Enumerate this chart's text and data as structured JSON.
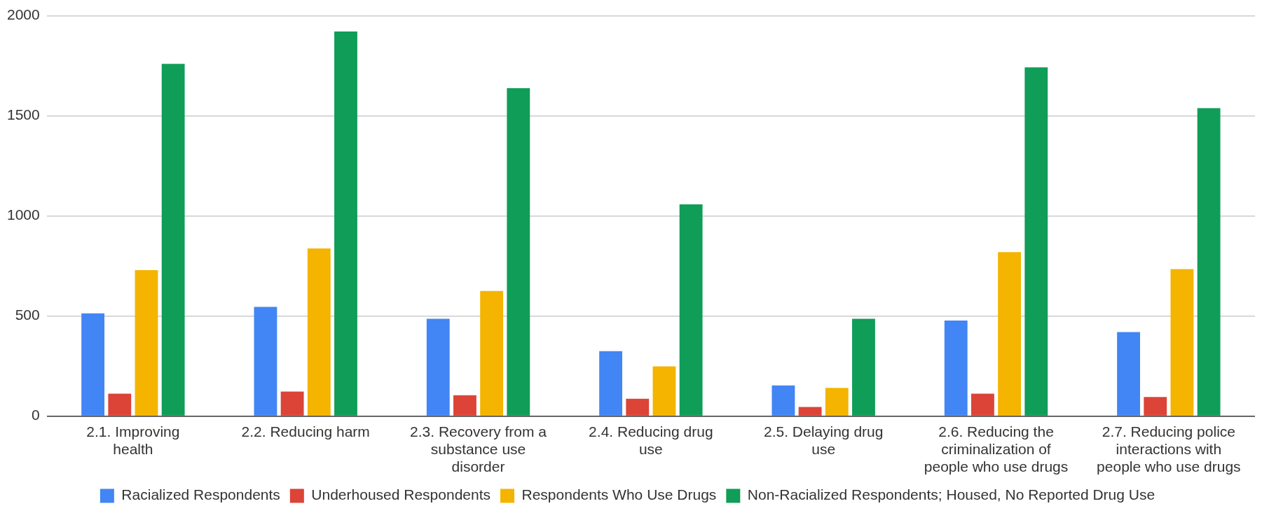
{
  "chart_data": {
    "type": "bar",
    "categories": [
      "2.1. Improving health",
      "2.2. Reducing harm",
      "2.3. Recovery from a substance use disorder",
      "2.4. Reducing drug use",
      "2.5. Delaying drug use",
      "2.6. Reducing the criminalization of people who use drugs",
      "2.7. Reducing police interactions with people who use drugs"
    ],
    "series": [
      {
        "name": "Racialized Respondents",
        "color": "#4285f4",
        "values": [
          513,
          545,
          486,
          324,
          153,
          477,
          419
        ]
      },
      {
        "name": "Underhoused Respondents",
        "color": "#db4437",
        "values": [
          112,
          122,
          104,
          86,
          45,
          112,
          95
        ]
      },
      {
        "name": "Respondents Who Use Drugs",
        "color": "#f4b400",
        "values": [
          729,
          837,
          625,
          248,
          140,
          819,
          734
        ]
      },
      {
        "name": "Non-Racialized Respondents; Housed, No Reported Drug Use",
        "color": "#0f9d58",
        "values": [
          1760,
          1922,
          1638,
          1058,
          486,
          1742,
          1539
        ]
      }
    ],
    "ylim": [
      0,
      2000
    ],
    "yticks": [
      0,
      500,
      1000,
      1500,
      2000
    ],
    "grid": "y",
    "legend": "bottom"
  }
}
